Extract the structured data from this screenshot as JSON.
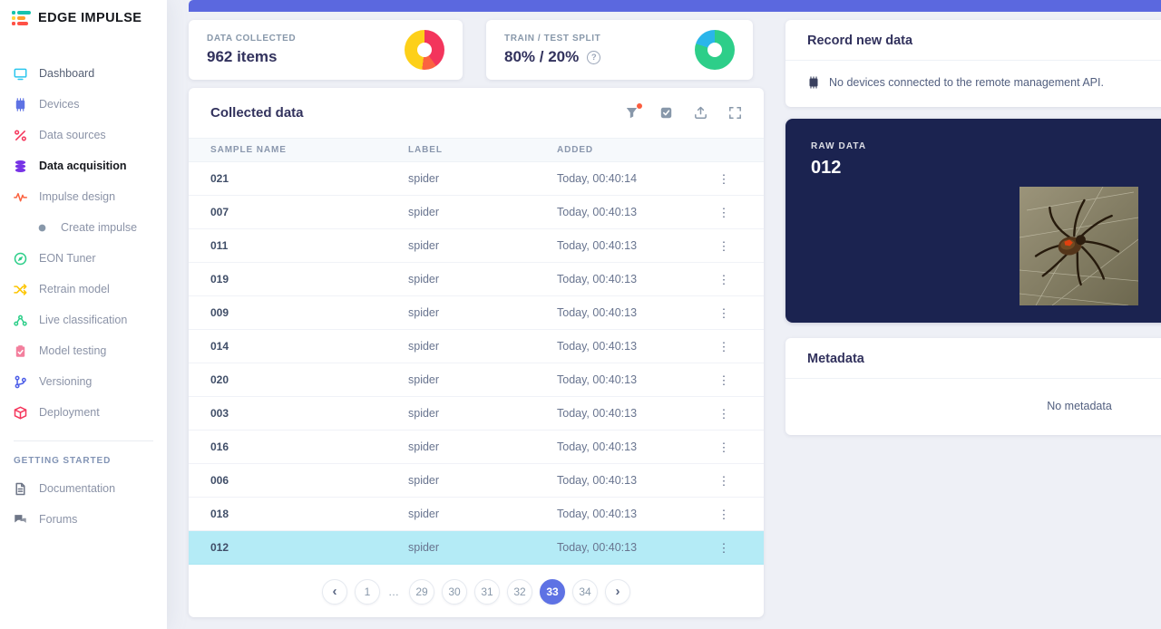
{
  "app": {
    "logo_text": "EDGE IMPULSE"
  },
  "colors": {
    "banner": "#5b68df",
    "selected_row": "#b4ebf6",
    "pagination_active": "#5e72e4",
    "raw_card_bg": "#1b2350",
    "filter_alert_dot": "#fb5d3e"
  },
  "sidebar": {
    "items": [
      {
        "label": "Dashboard",
        "icon": "monitor-icon",
        "color": "#2bc6ee",
        "state": "strong"
      },
      {
        "label": "Devices",
        "icon": "chip-icon",
        "color": "#5e72e4",
        "state": ""
      },
      {
        "label": "Data sources",
        "icon": "data-sources-icon",
        "color": "#f5365c",
        "state": ""
      },
      {
        "label": "Data acquisition",
        "icon": "database-icon",
        "color": "#7733e6",
        "state": "active"
      },
      {
        "label": "Impulse design",
        "icon": "waveform-icon",
        "color": "#fb6340",
        "state": ""
      },
      {
        "label": "Create impulse",
        "icon": "dot-icon",
        "color": "#8898aa",
        "state": "indent"
      },
      {
        "label": "EON Tuner",
        "icon": "compass-icon",
        "color": "#2dce89",
        "state": ""
      },
      {
        "label": "Retrain model",
        "icon": "shuffle-icon",
        "color": "#fdc500",
        "state": ""
      },
      {
        "label": "Live classification",
        "icon": "network-icon",
        "color": "#2dce89",
        "state": ""
      },
      {
        "label": "Model testing",
        "icon": "clipboard-check-icon",
        "color": "#f37f9d",
        "state": ""
      },
      {
        "label": "Versioning",
        "icon": "branch-icon",
        "color": "#4d5ee8",
        "state": ""
      },
      {
        "label": "Deployment",
        "icon": "box-icon",
        "color": "#f5365c",
        "state": ""
      }
    ],
    "section_label": "GETTING STARTED",
    "secondary_items": [
      {
        "label": "Documentation",
        "icon": "document-icon",
        "color": "#6e7687",
        "state": ""
      },
      {
        "label": "Forums",
        "icon": "forums-icon",
        "color": "#6e7687",
        "state": ""
      }
    ]
  },
  "stats": {
    "data_collected": {
      "label": "DATA COLLECTED",
      "value": "962 items",
      "donut": {
        "segments": [
          {
            "color": "#f3355c",
            "pct": 40
          },
          {
            "color": "#fb6340",
            "pct": 12
          },
          {
            "color": "#fdd019",
            "pct": 48
          }
        ]
      }
    },
    "train_test": {
      "label": "TRAIN / TEST SPLIT",
      "value": "80% / 20%",
      "help": "?",
      "donut": {
        "segments": [
          {
            "color": "#2dce89",
            "pct": 80
          },
          {
            "color": "#2ab5ea",
            "pct": 20
          }
        ]
      }
    }
  },
  "collected_data": {
    "title": "Collected data",
    "toolbar_icons": [
      "filter-icon",
      "select-icon",
      "upload-icon",
      "expand-icon"
    ],
    "columns": [
      "SAMPLE NAME",
      "LABEL",
      "ADDED"
    ],
    "rows": [
      {
        "name": "021",
        "label": "spider",
        "added": "Today, 00:40:14",
        "selected": false
      },
      {
        "name": "007",
        "label": "spider",
        "added": "Today, 00:40:13",
        "selected": false
      },
      {
        "name": "011",
        "label": "spider",
        "added": "Today, 00:40:13",
        "selected": false
      },
      {
        "name": "019",
        "label": "spider",
        "added": "Today, 00:40:13",
        "selected": false
      },
      {
        "name": "009",
        "label": "spider",
        "added": "Today, 00:40:13",
        "selected": false
      },
      {
        "name": "014",
        "label": "spider",
        "added": "Today, 00:40:13",
        "selected": false
      },
      {
        "name": "020",
        "label": "spider",
        "added": "Today, 00:40:13",
        "selected": false
      },
      {
        "name": "003",
        "label": "spider",
        "added": "Today, 00:40:13",
        "selected": false
      },
      {
        "name": "016",
        "label": "spider",
        "added": "Today, 00:40:13",
        "selected": false
      },
      {
        "name": "006",
        "label": "spider",
        "added": "Today, 00:40:13",
        "selected": false
      },
      {
        "name": "018",
        "label": "spider",
        "added": "Today, 00:40:13",
        "selected": false
      },
      {
        "name": "012",
        "label": "spider",
        "added": "Today, 00:40:13",
        "selected": true
      }
    ],
    "pagination": {
      "prev": "‹",
      "next": "›",
      "items": [
        "1",
        "…",
        "29",
        "30",
        "31",
        "32",
        "33",
        "34"
      ],
      "active": "33"
    }
  },
  "record_new_data": {
    "title": "Record new data",
    "message": "No devices connected to the remote management API."
  },
  "raw_data": {
    "label": "RAW DATA",
    "title": "012"
  },
  "metadata": {
    "title": "Metadata",
    "empty": "No metadata"
  }
}
